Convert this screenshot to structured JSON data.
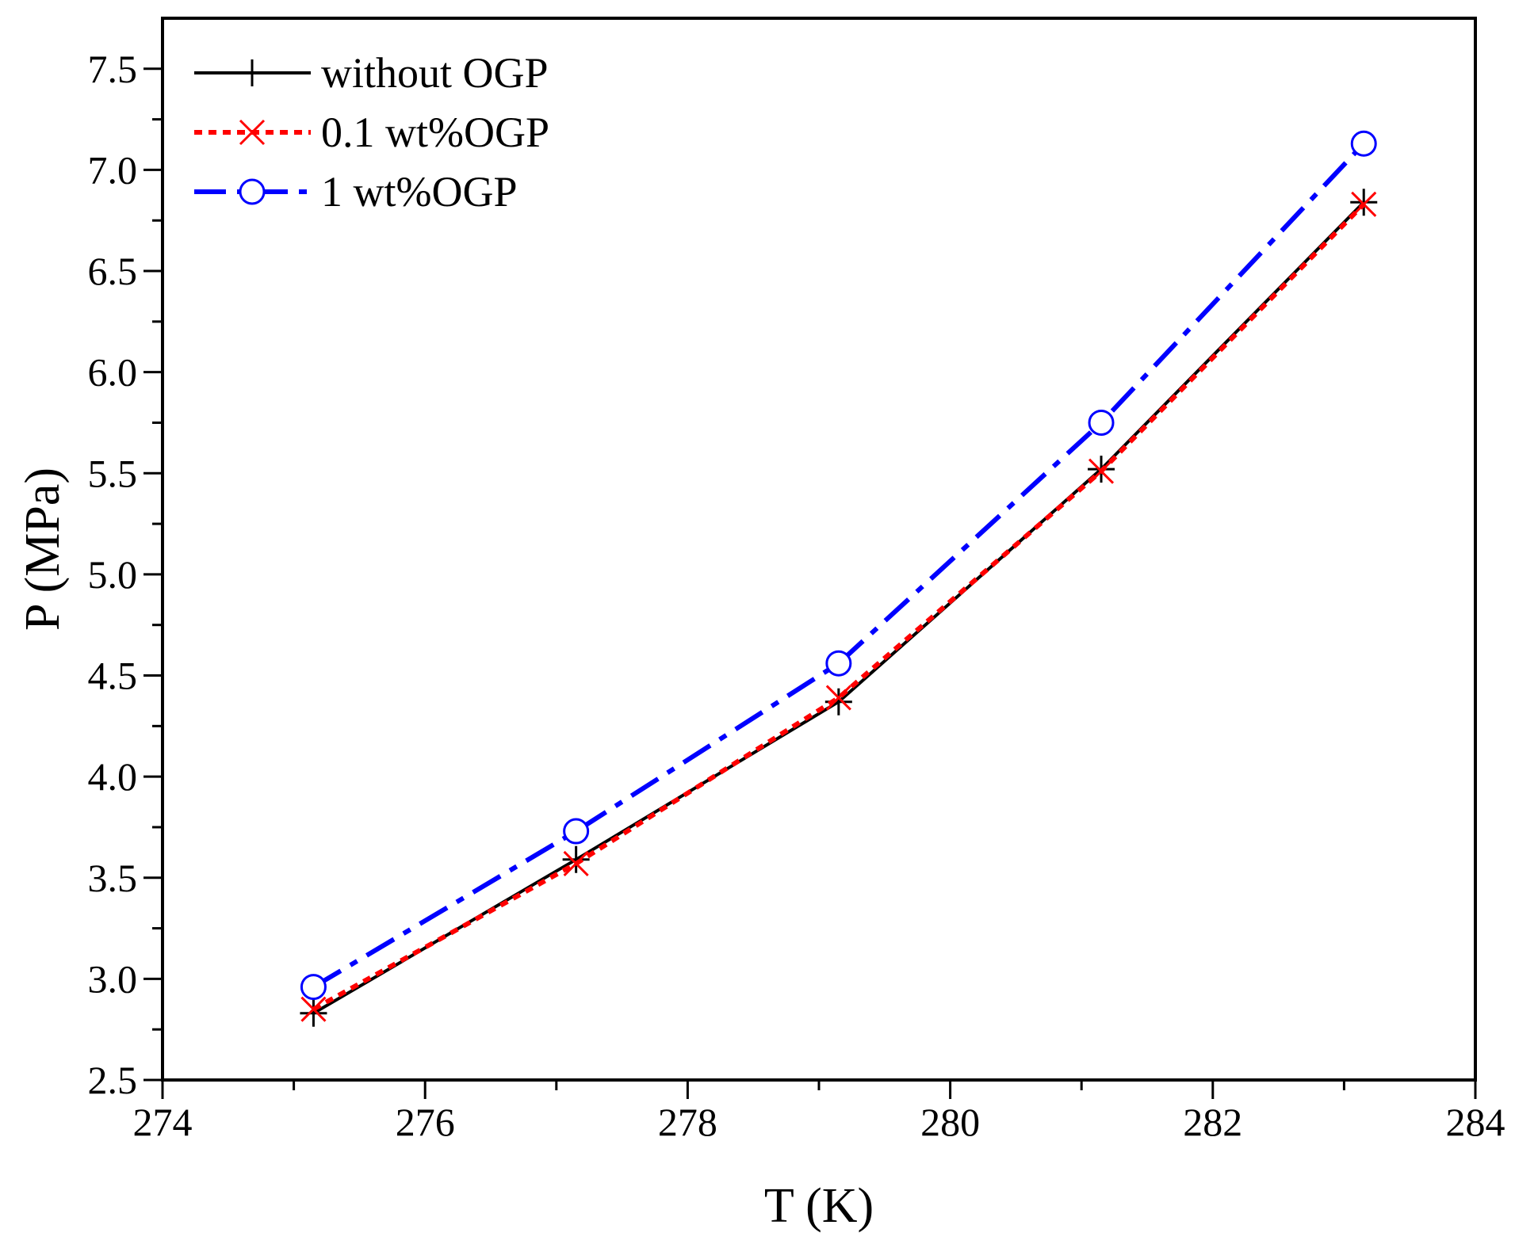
{
  "chart_data": {
    "type": "line",
    "title": "",
    "xlabel": "T (K)",
    "ylabel": "P (MPa)",
    "xlim": [
      274,
      284
    ],
    "ylim": [
      2.5,
      7.75
    ],
    "x_ticks": [
      274,
      276,
      278,
      280,
      282,
      284
    ],
    "y_ticks": [
      2.5,
      3.0,
      3.5,
      4.0,
      4.5,
      5.0,
      5.5,
      6.0,
      6.5,
      7.0,
      7.5
    ],
    "x_tick_labels": [
      "274",
      "276",
      "278",
      "280",
      "282",
      "284"
    ],
    "y_tick_labels": [
      "2.5",
      "3.0",
      "3.5",
      "4.0",
      "4.5",
      "5.0",
      "5.5",
      "6.0",
      "6.5",
      "7.0",
      "7.5"
    ],
    "grid": false,
    "legend_position": "top-left",
    "series": [
      {
        "name": "without OGP",
        "color": "#000000",
        "line_style": "solid",
        "marker": "plus",
        "x": [
          275.15,
          277.15,
          279.15,
          281.15,
          283.15
        ],
        "y": [
          2.83,
          3.59,
          4.37,
          5.52,
          6.84
        ]
      },
      {
        "name": "0.1 wt%OGP",
        "color": "#ff0000",
        "line_style": "dotted",
        "marker": "x",
        "x": [
          275.15,
          277.15,
          279.15,
          281.15,
          283.15
        ],
        "y": [
          2.85,
          3.57,
          4.39,
          5.51,
          6.83
        ]
      },
      {
        "name": "1 wt%OGP",
        "color": "#0000ff",
        "line_style": "dashdot",
        "marker": "circle",
        "x": [
          275.15,
          277.15,
          279.15,
          281.15,
          283.15
        ],
        "y": [
          2.96,
          3.73,
          4.56,
          5.75,
          7.13
        ]
      }
    ]
  }
}
